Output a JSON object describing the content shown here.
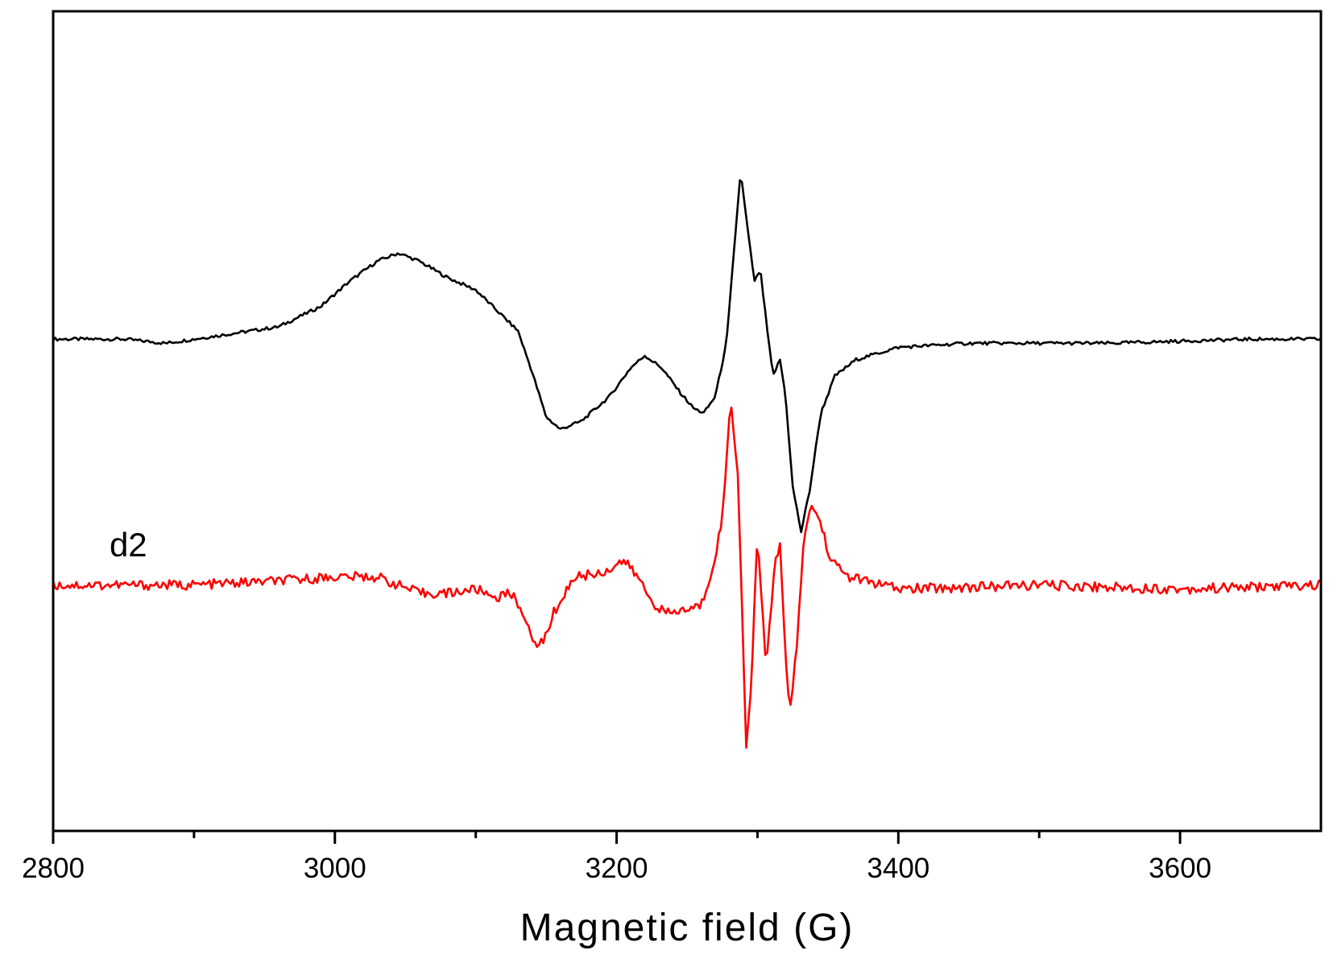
{
  "chart_data": {
    "type": "line",
    "title": "",
    "xlabel": "Magnetic field (G)",
    "ylabel": "",
    "xlim": [
      2800,
      3700
    ],
    "ylim": [
      -1.0,
      1.0
    ],
    "x_ticks": [
      2800,
      3000,
      3200,
      3400,
      3600
    ],
    "x_tick_labels": [
      "2800",
      "3000",
      "3200",
      "3400",
      "3600"
    ],
    "x_minor_ticks": [
      2900,
      3100,
      3300,
      3500
    ],
    "grid": false,
    "legend": "none",
    "annotations": [
      {
        "text": "d2",
        "x": 2840,
        "y": -0.33,
        "series": "red"
      }
    ],
    "series": [
      {
        "color": "#000000",
        "points": [
          [
            2800,
            0.2
          ],
          [
            2850,
            0.2
          ],
          [
            2880,
            0.19
          ],
          [
            2920,
            0.21
          ],
          [
            2960,
            0.23
          ],
          [
            2990,
            0.28
          ],
          [
            3010,
            0.34
          ],
          [
            3030,
            0.39
          ],
          [
            3045,
            0.41
          ],
          [
            3060,
            0.39
          ],
          [
            3080,
            0.35
          ],
          [
            3100,
            0.32
          ],
          [
            3115,
            0.27
          ],
          [
            3130,
            0.22
          ],
          [
            3140,
            0.12
          ],
          [
            3150,
            0.01
          ],
          [
            3160,
            -0.02
          ],
          [
            3175,
            0.0
          ],
          [
            3195,
            0.06
          ],
          [
            3210,
            0.13
          ],
          [
            3220,
            0.16
          ],
          [
            3232,
            0.13
          ],
          [
            3245,
            0.07
          ],
          [
            3255,
            0.03
          ],
          [
            3262,
            0.02
          ],
          [
            3270,
            0.06
          ],
          [
            3278,
            0.19
          ],
          [
            3288,
            0.61
          ],
          [
            3294,
            0.44
          ],
          [
            3298,
            0.34
          ],
          [
            3302,
            0.37
          ],
          [
            3307,
            0.22
          ],
          [
            3311,
            0.11
          ],
          [
            3316,
            0.15
          ],
          [
            3320,
            0.06
          ],
          [
            3325,
            -0.16
          ],
          [
            3331,
            -0.27
          ],
          [
            3337,
            -0.17
          ],
          [
            3345,
            0.02
          ],
          [
            3355,
            0.11
          ],
          [
            3370,
            0.15
          ],
          [
            3400,
            0.18
          ],
          [
            3450,
            0.19
          ],
          [
            3550,
            0.19
          ],
          [
            3650,
            0.2
          ],
          [
            3700,
            0.2
          ]
        ]
      },
      {
        "color": "#ff0000",
        "points": [
          [
            2800,
            -0.4
          ],
          [
            2900,
            -0.4
          ],
          [
            2960,
            -0.39
          ],
          [
            3000,
            -0.38
          ],
          [
            3030,
            -0.38
          ],
          [
            3060,
            -0.42
          ],
          [
            3080,
            -0.42
          ],
          [
            3100,
            -0.41
          ],
          [
            3115,
            -0.43
          ],
          [
            3125,
            -0.42
          ],
          [
            3133,
            -0.46
          ],
          [
            3140,
            -0.54
          ],
          [
            3148,
            -0.54
          ],
          [
            3155,
            -0.47
          ],
          [
            3170,
            -0.38
          ],
          [
            3190,
            -0.37
          ],
          [
            3205,
            -0.34
          ],
          [
            3215,
            -0.38
          ],
          [
            3225,
            -0.44
          ],
          [
            3235,
            -0.47
          ],
          [
            3250,
            -0.46
          ],
          [
            3260,
            -0.45
          ],
          [
            3268,
            -0.36
          ],
          [
            3275,
            -0.24
          ],
          [
            3281,
            0.05
          ],
          [
            3286,
            -0.12
          ],
          [
            3292,
            -0.79
          ],
          [
            3295,
            -0.68
          ],
          [
            3300,
            -0.28
          ],
          [
            3306,
            -0.6
          ],
          [
            3312,
            -0.36
          ],
          [
            3316,
            -0.29
          ],
          [
            3320,
            -0.58
          ],
          [
            3323,
            -0.72
          ],
          [
            3328,
            -0.55
          ],
          [
            3332,
            -0.32
          ],
          [
            3338,
            -0.2
          ],
          [
            3345,
            -0.25
          ],
          [
            3352,
            -0.34
          ],
          [
            3365,
            -0.38
          ],
          [
            3400,
            -0.41
          ],
          [
            3500,
            -0.4
          ],
          [
            3600,
            -0.41
          ],
          [
            3700,
            -0.4
          ]
        ]
      }
    ]
  }
}
